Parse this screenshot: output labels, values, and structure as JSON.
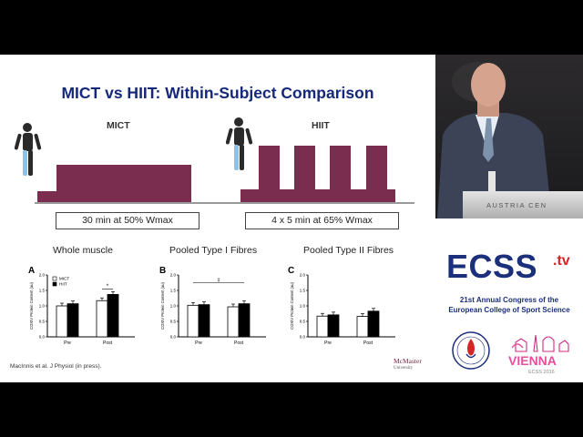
{
  "slide": {
    "title": "MICT vs HIIT: Within-Subject Comparison",
    "mict_label": "MICT",
    "hiit_label": "HIIT",
    "mict_box": "30 min at 50% Wmax",
    "hiit_box": "4 x 5 min at 65% Wmax",
    "panel_titles": [
      "Whole muscle",
      "Pooled Type I Fibres",
      "Pooled Type II Fibres"
    ],
    "citation": "MacInnis et al. J Physiol (in press).",
    "logo_name": "McMaster",
    "logo_sub": "University",
    "protocol_color": "#7a2d4f"
  },
  "chart_data": [
    {
      "type": "bar",
      "panel": "A",
      "categories": [
        "Pre",
        "Post"
      ],
      "series": [
        {
          "name": "MICT",
          "values": [
            1.0,
            1.17
          ]
        },
        {
          "name": "HIIT",
          "values": [
            1.07,
            1.37
          ]
        }
      ],
      "ylabel": "COXIV Protein Content (au)",
      "ylim": [
        0,
        2.0
      ],
      "yticks": [
        "0.0",
        "0.5",
        "1.0",
        "1.5",
        "2.0"
      ],
      "annotation": "*",
      "legend": "top-left"
    },
    {
      "type": "bar",
      "panel": "B",
      "categories": [
        "Pre",
        "Post"
      ],
      "series": [
        {
          "name": "MICT",
          "values": [
            1.02,
            0.97
          ]
        },
        {
          "name": "HIIT",
          "values": [
            1.04,
            1.07
          ]
        }
      ],
      "ylabel": "COXIV Protein Content (au)",
      "ylim": [
        0,
        2.0
      ],
      "yticks": [
        "0.0",
        "0.5",
        "1.0",
        "1.5",
        "2.0"
      ],
      "annotation": "‡"
    },
    {
      "type": "bar",
      "panel": "C",
      "categories": [
        "Pre",
        "Post"
      ],
      "series": [
        {
          "name": "MICT",
          "values": [
            0.67,
            0.66
          ]
        },
        {
          "name": "HIIT",
          "values": [
            0.71,
            0.83
          ]
        }
      ],
      "ylabel": "COXIV Protein Content (au)",
      "ylim": [
        0,
        2.0
      ],
      "yticks": [
        "0.0",
        "0.5",
        "1.0",
        "1.5",
        "2.0"
      ]
    }
  ],
  "video": {
    "podium_text": "AUSTRIA CEN"
  },
  "brand": {
    "logo": "ECSS",
    "tv": ".tv",
    "congress_line1": "21st Annual Congress of the",
    "congress_line2": "European College of Sport Science",
    "city": "VIENNA",
    "city_sub": "ECSS 2016"
  }
}
